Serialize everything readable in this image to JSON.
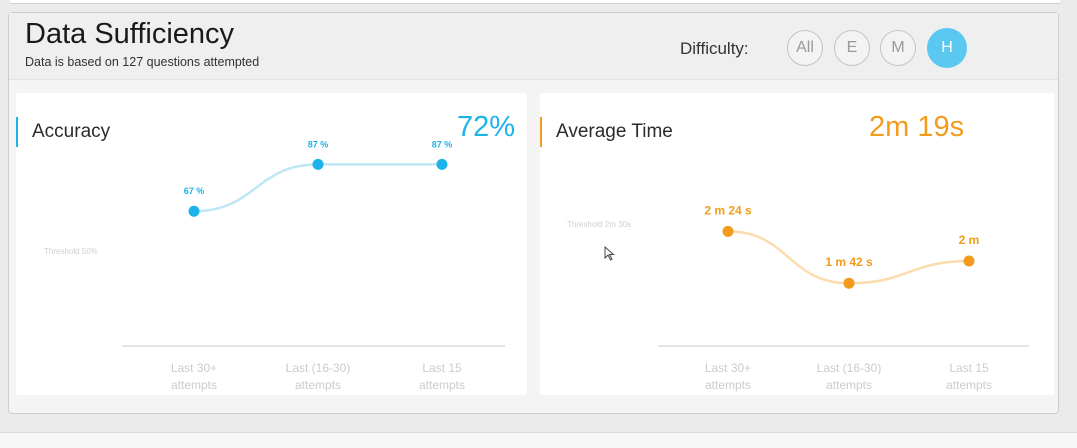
{
  "header": {
    "title": "Data Sufficiency",
    "subtitle": "Data is based on 127 questions attempted",
    "difficulty_label": "Difficulty:",
    "difficulty_options": [
      "All",
      "E",
      "M",
      "H"
    ],
    "active_difficulty": "H"
  },
  "colors": {
    "accuracy": "#1cb2ea",
    "accuracy_line": "#bfe6f6",
    "time": "#f29b1c",
    "time_line": "#fbdcae",
    "active_button": "#5bc8f2"
  },
  "accuracy": {
    "title": "Accuracy",
    "value": "72%",
    "threshold_label": "Threshold 50%"
  },
  "average_time": {
    "title": "Average Time",
    "value": "2m 19s",
    "threshold_label": "Threshold 2m 30s"
  },
  "chart_data": [
    {
      "type": "line",
      "title": "Accuracy",
      "categories": [
        [
          "Last 30+",
          "attempts"
        ],
        [
          "Last (16-30)",
          "attempts"
        ],
        [
          "Last 15",
          "attempts"
        ]
      ],
      "values": [
        67,
        87,
        87
      ],
      "data_labels": [
        "67 %",
        "87 %",
        "87 %"
      ],
      "threshold": 50,
      "unit": "%",
      "ylim": [
        0,
        100
      ],
      "grid": false,
      "legend": "none"
    },
    {
      "type": "line",
      "title": "Average Time",
      "categories": [
        [
          "Last 30+",
          "attempts"
        ],
        [
          "Last (16-30)",
          "attempts"
        ],
        [
          "Last 15",
          "attempts"
        ]
      ],
      "values": [
        144,
        102,
        120
      ],
      "data_labels": [
        "2 m 24 s",
        "1 m 42 s",
        "2 m"
      ],
      "threshold": 150,
      "unit": "seconds",
      "ylim": [
        0,
        240
      ],
      "grid": false,
      "legend": "none"
    }
  ]
}
